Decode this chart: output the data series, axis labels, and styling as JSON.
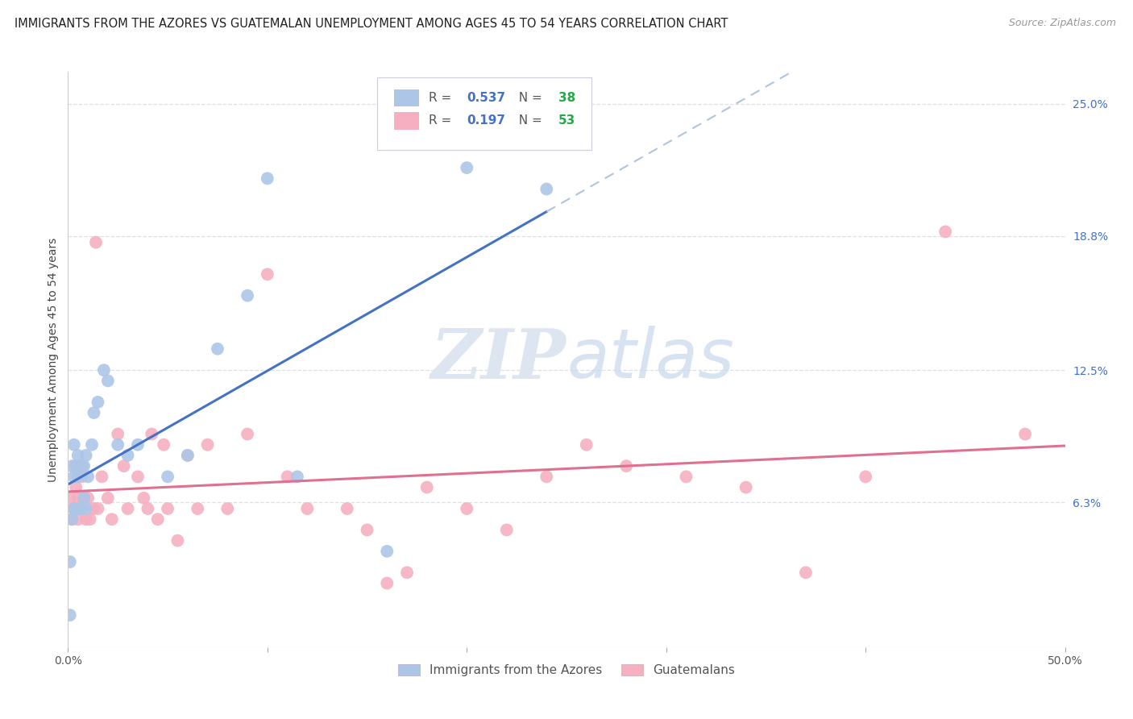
{
  "title": "IMMIGRANTS FROM THE AZORES VS GUATEMALAN UNEMPLOYMENT AMONG AGES 45 TO 54 YEARS CORRELATION CHART",
  "source": "Source: ZipAtlas.com",
  "ylabel": "Unemployment Among Ages 45 to 54 years",
  "xlim": [
    0.0,
    0.5
  ],
  "ylim": [
    -0.005,
    0.265
  ],
  "yticks_right": [
    0.063,
    0.125,
    0.188,
    0.25
  ],
  "ytick_labels_right": [
    "6.3%",
    "12.5%",
    "18.8%",
    "25.0%"
  ],
  "legend1_label": "Immigrants from the Azores",
  "legend2_label": "Guatemalans",
  "R1": "0.537",
  "N1": "38",
  "R2": "0.197",
  "N2": "53",
  "color1": "#adc6e8",
  "color2": "#f5afc0",
  "line1_color": "#4472c4",
  "line2_color": "#e07090",
  "dash_color": "#b0c4de",
  "watermark_zip": "ZIP",
  "watermark_atlas": "atlas",
  "background_color": "#ffffff",
  "grid_color": "#dde0ea",
  "blue_x": [
    0.001,
    0.001,
    0.002,
    0.002,
    0.003,
    0.003,
    0.003,
    0.004,
    0.004,
    0.005,
    0.005,
    0.005,
    0.006,
    0.006,
    0.007,
    0.007,
    0.008,
    0.008,
    0.009,
    0.009,
    0.01,
    0.012,
    0.013,
    0.015,
    0.018,
    0.02,
    0.025,
    0.03,
    0.035,
    0.05,
    0.06,
    0.075,
    0.09,
    0.1,
    0.115,
    0.16,
    0.2,
    0.24
  ],
  "blue_y": [
    0.01,
    0.035,
    0.055,
    0.08,
    0.06,
    0.075,
    0.09,
    0.06,
    0.08,
    0.06,
    0.075,
    0.085,
    0.06,
    0.08,
    0.06,
    0.08,
    0.065,
    0.08,
    0.06,
    0.085,
    0.075,
    0.09,
    0.105,
    0.11,
    0.125,
    0.12,
    0.09,
    0.085,
    0.09,
    0.075,
    0.085,
    0.135,
    0.16,
    0.215,
    0.075,
    0.04,
    0.22,
    0.21
  ],
  "pink_x": [
    0.001,
    0.002,
    0.003,
    0.004,
    0.005,
    0.005,
    0.006,
    0.007,
    0.008,
    0.009,
    0.01,
    0.011,
    0.013,
    0.014,
    0.015,
    0.017,
    0.02,
    0.022,
    0.025,
    0.028,
    0.03,
    0.035,
    0.038,
    0.04,
    0.042,
    0.045,
    0.048,
    0.05,
    0.055,
    0.06,
    0.065,
    0.07,
    0.08,
    0.09,
    0.1,
    0.11,
    0.12,
    0.14,
    0.15,
    0.16,
    0.17,
    0.18,
    0.2,
    0.22,
    0.24,
    0.26,
    0.28,
    0.31,
    0.34,
    0.37,
    0.4,
    0.44,
    0.48
  ],
  "pink_y": [
    0.065,
    0.055,
    0.06,
    0.07,
    0.065,
    0.055,
    0.06,
    0.075,
    0.065,
    0.055,
    0.065,
    0.055,
    0.06,
    0.185,
    0.06,
    0.075,
    0.065,
    0.055,
    0.095,
    0.08,
    0.06,
    0.075,
    0.065,
    0.06,
    0.095,
    0.055,
    0.09,
    0.06,
    0.045,
    0.085,
    0.06,
    0.09,
    0.06,
    0.095,
    0.17,
    0.075,
    0.06,
    0.06,
    0.05,
    0.025,
    0.03,
    0.07,
    0.06,
    0.05,
    0.075,
    0.09,
    0.08,
    0.075,
    0.07,
    0.03,
    0.075,
    0.19,
    0.095
  ],
  "title_fontsize": 10.5,
  "source_fontsize": 9,
  "axis_label_fontsize": 10,
  "tick_fontsize": 10,
  "legend_fontsize": 11
}
